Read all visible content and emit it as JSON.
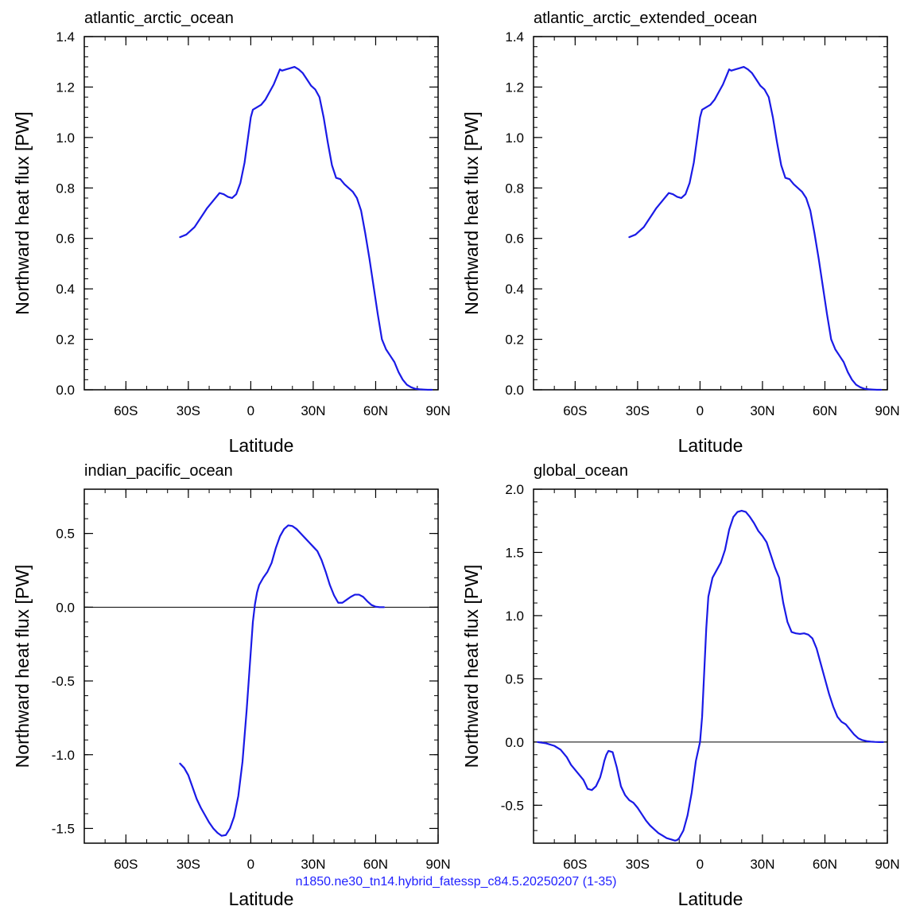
{
  "footer_text": "n1850.ne30_tn14.hybrid_fatessp_c84.5.20250207 (1-35)",
  "colors": {
    "line": "#1a1ae6",
    "axis": "#000000",
    "zero_line": "#000000"
  },
  "chart_data": [
    {
      "type": "line",
      "title": "atlantic_arctic_ocean",
      "xlabel": "Latitude",
      "ylabel": "Northward heat flux [PW]",
      "xlim": [
        -80,
        90
      ],
      "ylim": [
        0.0,
        1.4
      ],
      "xticks": [
        -60,
        -30,
        0,
        30,
        60,
        90
      ],
      "xtick_labels": [
        "60S",
        "30S",
        "0",
        "30N",
        "60N",
        "90N"
      ],
      "yticks": [
        0.0,
        0.2,
        0.4,
        0.6,
        0.8,
        1.0,
        1.2,
        1.4
      ],
      "ytick_labels": [
        "0.0",
        "0.2",
        "0.4",
        "0.6",
        "0.8",
        "1.0",
        "1.2",
        "1.4"
      ],
      "zero_line": false,
      "x": [
        -34,
        -31,
        -29,
        -27,
        -25,
        -23,
        -21,
        -19,
        -17,
        -15,
        -13,
        -11,
        -9,
        -7,
        -5,
        -3,
        -1,
        0,
        1,
        3,
        5,
        7,
        9,
        11,
        13,
        14,
        15,
        17,
        19,
        21,
        23,
        25,
        27,
        29,
        31,
        33,
        35,
        37,
        39,
        41,
        43,
        45,
        47,
        49,
        51,
        53,
        55,
        57,
        59,
        61,
        63,
        65,
        67,
        69,
        71,
        73,
        75,
        77,
        79,
        81,
        83,
        85,
        87
      ],
      "y": [
        0.605,
        0.615,
        0.63,
        0.645,
        0.67,
        0.695,
        0.72,
        0.74,
        0.76,
        0.78,
        0.775,
        0.765,
        0.76,
        0.775,
        0.82,
        0.9,
        1.02,
        1.08,
        1.11,
        1.12,
        1.13,
        1.15,
        1.18,
        1.21,
        1.25,
        1.27,
        1.265,
        1.27,
        1.275,
        1.28,
        1.27,
        1.255,
        1.23,
        1.205,
        1.19,
        1.16,
        1.08,
        0.98,
        0.89,
        0.84,
        0.835,
        0.815,
        0.8,
        0.785,
        0.76,
        0.71,
        0.62,
        0.52,
        0.41,
        0.3,
        0.2,
        0.16,
        0.135,
        0.11,
        0.07,
        0.04,
        0.02,
        0.01,
        0.004,
        0.002,
        0.001,
        0.0,
        0.0
      ]
    },
    {
      "type": "line",
      "title": "atlantic_arctic_extended_ocean",
      "xlabel": "Latitude",
      "ylabel": "Northward heat flux [PW]",
      "xlim": [
        -80,
        90
      ],
      "ylim": [
        0.0,
        1.4
      ],
      "xticks": [
        -60,
        -30,
        0,
        30,
        60,
        90
      ],
      "xtick_labels": [
        "60S",
        "30S",
        "0",
        "30N",
        "60N",
        "90N"
      ],
      "yticks": [
        0.0,
        0.2,
        0.4,
        0.6,
        0.8,
        1.0,
        1.2,
        1.4
      ],
      "ytick_labels": [
        "0.0",
        "0.2",
        "0.4",
        "0.6",
        "0.8",
        "1.0",
        "1.2",
        "1.4"
      ],
      "zero_line": false,
      "x": [
        -34,
        -31,
        -29,
        -27,
        -25,
        -23,
        -21,
        -19,
        -17,
        -15,
        -13,
        -11,
        -9,
        -7,
        -5,
        -3,
        -1,
        0,
        1,
        3,
        5,
        7,
        9,
        11,
        13,
        14,
        15,
        17,
        19,
        21,
        23,
        25,
        27,
        29,
        31,
        33,
        35,
        37,
        39,
        41,
        43,
        45,
        47,
        49,
        51,
        53,
        55,
        57,
        59,
        61,
        63,
        65,
        67,
        69,
        71,
        73,
        75,
        77,
        79,
        81,
        83,
        85,
        87
      ],
      "y": [
        0.605,
        0.615,
        0.63,
        0.645,
        0.67,
        0.695,
        0.72,
        0.74,
        0.76,
        0.78,
        0.775,
        0.765,
        0.76,
        0.775,
        0.82,
        0.9,
        1.02,
        1.08,
        1.11,
        1.12,
        1.13,
        1.15,
        1.18,
        1.21,
        1.25,
        1.27,
        1.265,
        1.27,
        1.275,
        1.28,
        1.27,
        1.255,
        1.23,
        1.205,
        1.19,
        1.16,
        1.08,
        0.98,
        0.89,
        0.84,
        0.835,
        0.815,
        0.8,
        0.785,
        0.76,
        0.71,
        0.62,
        0.52,
        0.41,
        0.3,
        0.2,
        0.16,
        0.135,
        0.11,
        0.07,
        0.04,
        0.02,
        0.01,
        0.004,
        0.002,
        0.001,
        0.0,
        0.0
      ]
    },
    {
      "type": "line",
      "title": "indian_pacific_ocean",
      "xlabel": "Latitude",
      "ylabel": "Northward heat flux [PW]",
      "xlim": [
        -80,
        90
      ],
      "ylim": [
        -1.6,
        0.8
      ],
      "xticks": [
        -60,
        -30,
        0,
        30,
        60,
        90
      ],
      "xtick_labels": [
        "60S",
        "30S",
        "0",
        "30N",
        "60N",
        "90N"
      ],
      "yticks": [
        -1.5,
        -1.0,
        -0.5,
        0.0,
        0.5
      ],
      "ytick_labels": [
        "-1.5",
        "-1.0",
        "-0.5",
        "0.0",
        "0.5"
      ],
      "zero_line": true,
      "x": [
        -34,
        -32,
        -30,
        -28,
        -26,
        -24,
        -22,
        -20,
        -18,
        -16,
        -14,
        -12,
        -10,
        -8,
        -6,
        -4,
        -2,
        0,
        1,
        2,
        3,
        4,
        6,
        8,
        10,
        12,
        14,
        16,
        18,
        20,
        22,
        24,
        26,
        28,
        30,
        32,
        34,
        36,
        38,
        40,
        42,
        44,
        46,
        48,
        50,
        52,
        54,
        56,
        58,
        60,
        62,
        64
      ],
      "y": [
        -1.06,
        -1.09,
        -1.14,
        -1.22,
        -1.3,
        -1.36,
        -1.41,
        -1.46,
        -1.5,
        -1.53,
        -1.55,
        -1.545,
        -1.5,
        -1.42,
        -1.28,
        -1.05,
        -0.7,
        -0.3,
        -0.1,
        0.02,
        0.1,
        0.15,
        0.2,
        0.24,
        0.3,
        0.4,
        0.48,
        0.53,
        0.555,
        0.55,
        0.53,
        0.5,
        0.47,
        0.44,
        0.41,
        0.38,
        0.32,
        0.24,
        0.15,
        0.08,
        0.03,
        0.03,
        0.05,
        0.07,
        0.085,
        0.085,
        0.07,
        0.04,
        0.015,
        0.003,
        0.0,
        0.0
      ]
    },
    {
      "type": "line",
      "title": "global_ocean",
      "xlabel": "Latitude",
      "ylabel": "Northward heat flux [PW]",
      "xlim": [
        -80,
        90
      ],
      "ylim": [
        -0.8,
        2.0
      ],
      "xticks": [
        -60,
        -30,
        0,
        30,
        60,
        90
      ],
      "xtick_labels": [
        "60S",
        "30S",
        "0",
        "30N",
        "60N",
        "90N"
      ],
      "yticks": [
        -0.5,
        0.0,
        0.5,
        1.0,
        1.5,
        2.0
      ],
      "ytick_labels": [
        "-0.5",
        "0.0",
        "0.5",
        "1.0",
        "1.5",
        "2.0"
      ],
      "zero_line": true,
      "x": [
        -78,
        -74,
        -70,
        -67,
        -64,
        -62,
        -60,
        -58,
        -56,
        -54,
        -52,
        -50,
        -48,
        -47,
        -46,
        -45,
        -44,
        -42,
        -40,
        -38,
        -36,
        -34,
        -32,
        -30,
        -28,
        -26,
        -24,
        -22,
        -20,
        -18,
        -16,
        -14,
        -12,
        -11,
        -10,
        -8,
        -6,
        -4,
        -2,
        0,
        1,
        2,
        3,
        4,
        6,
        8,
        10,
        12,
        14,
        16,
        18,
        20,
        22,
        24,
        26,
        28,
        30,
        32,
        34,
        36,
        38,
        40,
        42,
        44,
        46,
        48,
        50,
        52,
        54,
        56,
        58,
        60,
        62,
        64,
        66,
        68,
        70,
        72,
        74,
        76,
        78,
        80,
        82,
        84,
        86,
        88
      ],
      "y": [
        0.0,
        -0.01,
        -0.03,
        -0.06,
        -0.12,
        -0.18,
        -0.22,
        -0.26,
        -0.3,
        -0.37,
        -0.38,
        -0.35,
        -0.28,
        -0.22,
        -0.15,
        -0.1,
        -0.07,
        -0.08,
        -0.2,
        -0.35,
        -0.42,
        -0.46,
        -0.48,
        -0.52,
        -0.57,
        -0.62,
        -0.66,
        -0.69,
        -0.72,
        -0.74,
        -0.76,
        -0.77,
        -0.78,
        -0.775,
        -0.76,
        -0.7,
        -0.58,
        -0.4,
        -0.15,
        0.0,
        0.2,
        0.55,
        0.9,
        1.15,
        1.3,
        1.36,
        1.42,
        1.52,
        1.68,
        1.78,
        1.82,
        1.83,
        1.82,
        1.78,
        1.73,
        1.67,
        1.63,
        1.58,
        1.48,
        1.38,
        1.3,
        1.1,
        0.95,
        0.87,
        0.86,
        0.855,
        0.86,
        0.85,
        0.82,
        0.74,
        0.62,
        0.5,
        0.38,
        0.28,
        0.2,
        0.16,
        0.14,
        0.1,
        0.06,
        0.03,
        0.015,
        0.007,
        0.003,
        0.001,
        0.0,
        0.0
      ]
    }
  ]
}
